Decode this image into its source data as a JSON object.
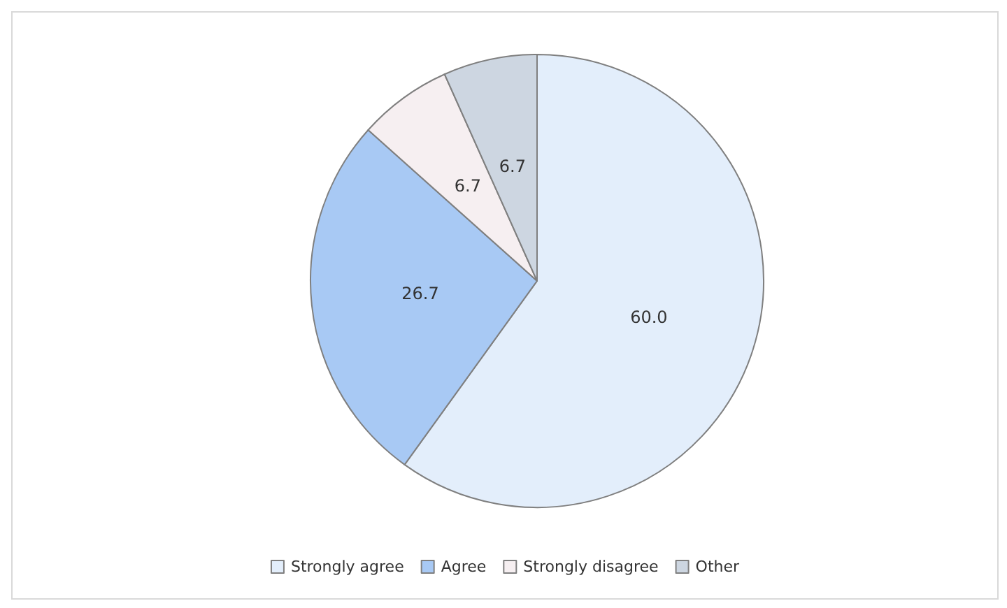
{
  "chart_data": {
    "type": "pie",
    "categories": [
      "Strongly agree",
      "Agree",
      "Strongly disagree",
      "Other"
    ],
    "values": [
      60.0,
      26.7,
      6.7,
      6.7
    ],
    "value_labels": [
      "60.0",
      "26.7",
      "6.7",
      "6.7"
    ],
    "colors": [
      "#e3eefb",
      "#a8c9f4",
      "#f6eff1",
      "#cdd6e1"
    ],
    "legend": "bottom"
  }
}
